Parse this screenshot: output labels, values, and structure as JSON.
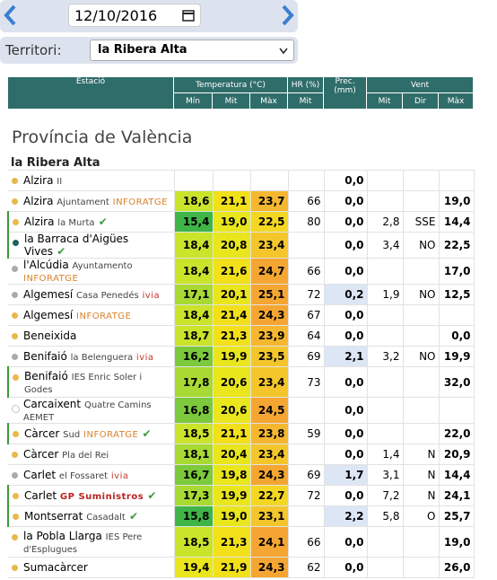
{
  "header": {
    "date": "12/10/2016",
    "territory_label": "Territori:",
    "territory": "la Ribera Alta"
  },
  "table": {
    "columns": {
      "station": "Estació",
      "temp": "Temperatura (°C)",
      "hr": "HR (%)",
      "prec": "Prec. (mm)",
      "wind": "Vent"
    },
    "subcolumns": [
      "Mín",
      "Mit",
      "Màx",
      "Mit",
      "Mit",
      "Dir",
      "Màx"
    ],
    "province": "Província de València",
    "region": "la Ribera Alta",
    "rows": [
      {
        "name": "Alzira",
        "sub": "II",
        "dot": "#e8b84a",
        "values": [
          null,
          null,
          null,
          null,
          "0,0",
          null,
          null,
          null
        ]
      },
      {
        "name": "Alzira",
        "sub": "Ajuntament",
        "brand": "INFORATGE",
        "dot": "#e8b84a",
        "values": [
          "18,6",
          "21,1",
          "23,7",
          "66",
          "0,0",
          null,
          null,
          "19,0"
        ]
      },
      {
        "name": "Alzira",
        "sub": "la Murta",
        "check": true,
        "dot": "#e8b84a",
        "values": [
          "15,4",
          "19,0",
          "22,5",
          "80",
          "0,0",
          "2,8",
          "SSE",
          "14,4"
        ]
      },
      {
        "name": "la Barraca d'Aigües Vives",
        "check": true,
        "dot": "#1f5f5f",
        "values": [
          "18,4",
          "20,8",
          "23,4",
          null,
          "0,0",
          "3,4",
          "NO",
          "22,5"
        ]
      },
      {
        "name": "l'Alcúdia",
        "sub": "Ayuntamento",
        "brand": "INFORATGE",
        "dot": "#aaaaaa",
        "values": [
          "18,4",
          "21,6",
          "24,7",
          "66",
          "0,0",
          null,
          null,
          "17,0"
        ]
      },
      {
        "name": "Algemesí",
        "sub": "Casa Penedés",
        "brand": "ivia",
        "dot": "#aaaaaa",
        "values": [
          "17,1",
          "20,1",
          "25,1",
          "72",
          "0,2",
          "1,9",
          "NO",
          "12,5"
        ]
      },
      {
        "name": "Algemesí",
        "brand": "INFORATGE",
        "dot": "#e8b84a",
        "values": [
          "18,4",
          "21,4",
          "24,3",
          "67",
          "0,0",
          null,
          null,
          null
        ]
      },
      {
        "name": "Beneixida",
        "dot": "#e8b84a",
        "values": [
          "18,7",
          "21,3",
          "23,9",
          "64",
          "0,0",
          null,
          null,
          "0,0"
        ]
      },
      {
        "name": "Benifaió",
        "sub": "la Belenguera",
        "brand": "ivia",
        "dot": "#aaaaaa",
        "values": [
          "16,2",
          "19,9",
          "23,5",
          "69",
          "2,1",
          "3,2",
          "NO",
          "19,9"
        ]
      },
      {
        "name": "Benifaió",
        "sub": "IES Enric Soler i Godes",
        "dot": "#e8b84a",
        "values": [
          "17,8",
          "20,6",
          "23,4",
          "73",
          "0,0",
          null,
          null,
          "32,0"
        ]
      },
      {
        "name": "Carcaixent",
        "sub": "Quatre Camins AEMET",
        "dot": "#ffffff",
        "values": [
          "16,8",
          "20,6",
          "24,5",
          null,
          "0,0",
          null,
          null,
          null
        ]
      },
      {
        "name": "Càrcer",
        "sub": "Sud",
        "brand": "INFORATGE",
        "check": true,
        "dot": "#e8b84a",
        "values": [
          "18,5",
          "21,1",
          "23,8",
          "59",
          "0,0",
          null,
          null,
          "22,0"
        ]
      },
      {
        "name": "Càrcer",
        "sub": "Pla del Rei",
        "dot": "#e8b84a",
        "values": [
          "18,1",
          "20,4",
          "23,4",
          null,
          "0,0",
          "1,4",
          "N",
          "20,9"
        ]
      },
      {
        "name": "Carlet",
        "sub": "el Fossaret",
        "brand": "ivia",
        "dot": "#aaaaaa",
        "values": [
          "16,7",
          "19,8",
          "24,3",
          "69",
          "1,7",
          "3,1",
          "N",
          "14,4"
        ]
      },
      {
        "name": "Carlet",
        "brand": "GP Suministros",
        "check": true,
        "dot": "#e8b84a",
        "values": [
          "17,3",
          "19,9",
          "22,7",
          "72",
          "0,0",
          "7,2",
          "N",
          "24,1"
        ]
      },
      {
        "name": "Montserrat",
        "sub": "Casadalt",
        "check": true,
        "dot": "#e8b84a",
        "values": [
          "15,8",
          "19,0",
          "23,1",
          null,
          "2,2",
          "5,8",
          "O",
          "25,7"
        ]
      },
      {
        "name": "la Pobla Llarga",
        "sub": "IES Pere d'Esplugues",
        "dot": "#e8b84a",
        "values": [
          "18,5",
          "21,3",
          "24,1",
          "66",
          "0,0",
          null,
          null,
          "19,0"
        ]
      },
      {
        "name": "Sumacàrcer",
        "dot": "#e8b84a",
        "values": [
          "19,4",
          "21,9",
          "24,3",
          "62",
          "0,0",
          null,
          null,
          "26,0"
        ]
      }
    ]
  }
}
